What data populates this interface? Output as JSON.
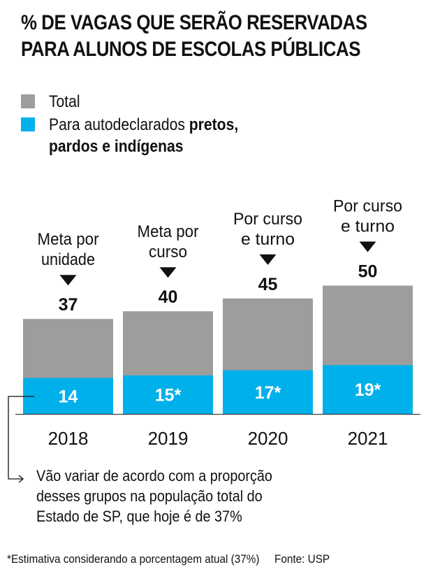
{
  "title": {
    "line1": "% DE VAGAS QUE SERÃO RESERVADAS",
    "line2": "PARA ALUNOS DE ESCOLAS PÚBLICAS"
  },
  "legend": {
    "total_label": "Total",
    "group_label_regular": "Para autodeclarados ",
    "group_label_bold1": "pretos,",
    "group_label_bold2": "pardos e indígenas"
  },
  "colors": {
    "total": "#9d9d9c",
    "group": "#00b0ea",
    "text": "#111111"
  },
  "chart_data": {
    "type": "bar",
    "stacked": "overlay",
    "title": "% DE VAGAS QUE SERÃO RESERVADAS PARA ALUNOS DE ESCOLAS PÚBLICAS",
    "categories": [
      "2018",
      "2019",
      "2020",
      "2021"
    ],
    "series": [
      {
        "name": "Total",
        "values": [
          37,
          40,
          45,
          50
        ],
        "labels": [
          "37",
          "40",
          "45",
          "50"
        ]
      },
      {
        "name": "Para autodeclarados pretos, pardos e indígenas",
        "values": [
          14,
          15,
          17,
          19
        ],
        "labels": [
          "14",
          "15*",
          "17*",
          "19*"
        ]
      }
    ],
    "annotations": [
      [
        "Meta por",
        "unidade"
      ],
      [
        "Meta por",
        "curso"
      ],
      [
        "Por curso",
        "e turno"
      ],
      [
        "Por curso",
        "e turno"
      ]
    ],
    "xlabel": "",
    "ylabel": "",
    "ylim": [
      0,
      50
    ],
    "grid": false,
    "legend_position": "top-left"
  },
  "note": {
    "line1": "Vão variar de acordo com a proporção",
    "line2": "desses grupos na população total do",
    "line3": "Estado de SP, que hoje é de 37%"
  },
  "footer": {
    "footnote": "*Estimativa considerando a porcentagem atual (37%)",
    "source": "Fonte: USP"
  }
}
